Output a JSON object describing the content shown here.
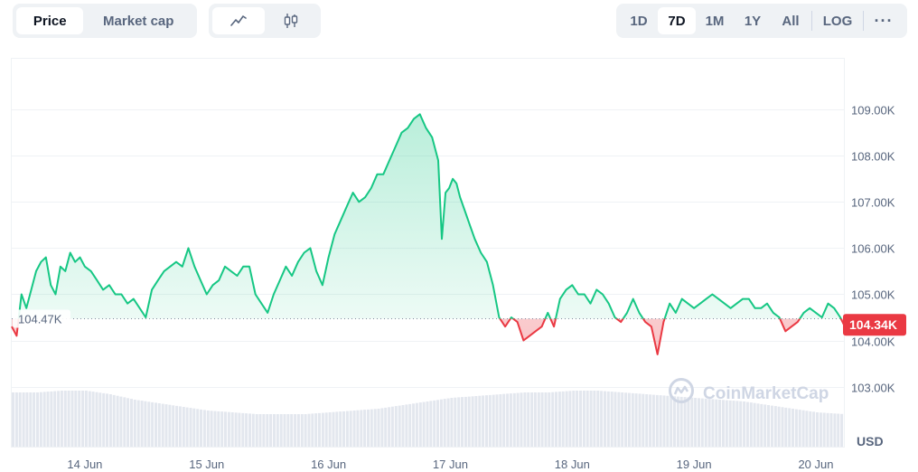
{
  "toolbar": {
    "type_toggle": [
      "Price",
      "Market cap"
    ],
    "type_active": 0,
    "style_icons": [
      "line-chart-icon",
      "candlestick-icon"
    ],
    "style_active": 0,
    "ranges": [
      "1D",
      "7D",
      "1M",
      "1Y",
      "All"
    ],
    "range_active": 1,
    "log_label": "LOG",
    "more_label": "···"
  },
  "colors": {
    "up": "#16c784",
    "down": "#ea3943",
    "up_fill": "#16c784",
    "down_fill": "#ea3943",
    "grid": "#eff2f5",
    "volume": "#e3e7ee",
    "ref_line": "#808a9d",
    "current_badge": "#ea3943",
    "watermark": "#cfd6e4"
  },
  "watermark": {
    "text": "CoinMarketCap",
    "icon": "coinmarketcap-logo-icon"
  },
  "chart_data": {
    "type": "area",
    "title": "",
    "xlabel": "",
    "ylabel": "USD",
    "x_ticks": [
      "14 Jun",
      "15 Jun",
      "16 Jun",
      "17 Jun",
      "18 Jun",
      "19 Jun",
      "20 Jun"
    ],
    "y_ticks": [
      "103.00K",
      "104.00K",
      "105.00K",
      "106.00K",
      "107.00K",
      "108.00K",
      "109.00K"
    ],
    "y_tick_values": [
      103000,
      104000,
      105000,
      106000,
      107000,
      108000,
      109000
    ],
    "ylim": [
      101700,
      110100
    ],
    "x_range_days": [
      13.4,
      20.23
    ],
    "reference_value": 104470,
    "reference_label": "104.47K",
    "current_value": 104340,
    "current_label": "104.34K",
    "series": [
      {
        "x": [
          13.4,
          13.44,
          13.48,
          13.52,
          13.56,
          13.6,
          13.64,
          13.68,
          13.72,
          13.76,
          13.8,
          13.84,
          13.88,
          13.92,
          13.96,
          14.0,
          14.05,
          14.1,
          14.15,
          14.2,
          14.25,
          14.3,
          14.35,
          14.4,
          14.45,
          14.5,
          14.55,
          14.6,
          14.65,
          14.7,
          14.75,
          14.8,
          14.85,
          14.9,
          14.95,
          15.0,
          15.05,
          15.1,
          15.15,
          15.2,
          15.25,
          15.3,
          15.35,
          15.4,
          15.45,
          15.5,
          15.55,
          15.6,
          15.65,
          15.7,
          15.75,
          15.8,
          15.85,
          15.9,
          15.95,
          16.0,
          16.05,
          16.1,
          16.15,
          16.2,
          16.25,
          16.3,
          16.35,
          16.4,
          16.45,
          16.5,
          16.55,
          16.6,
          16.65,
          16.7,
          16.75,
          16.8,
          16.85,
          16.9,
          16.93,
          16.96,
          16.99,
          17.02,
          17.05,
          17.08,
          17.12,
          17.16,
          17.2,
          17.25,
          17.3,
          17.35,
          17.4,
          17.45,
          17.5,
          17.55,
          17.6,
          17.65,
          17.7,
          17.75,
          17.8,
          17.85,
          17.9,
          17.95,
          18.0,
          18.05,
          18.1,
          18.15,
          18.2,
          18.25,
          18.3,
          18.35,
          18.4,
          18.45,
          18.5,
          18.55,
          18.6,
          18.65,
          18.7,
          18.75,
          18.8,
          18.85,
          18.9,
          18.95,
          19.0,
          19.05,
          19.1,
          19.15,
          19.2,
          19.25,
          19.3,
          19.35,
          19.4,
          19.45,
          19.5,
          19.55,
          19.6,
          19.65,
          19.7,
          19.75,
          19.8,
          19.85,
          19.9,
          19.95,
          20.0,
          20.05,
          20.1,
          20.15,
          20.2,
          20.23
        ],
        "y": [
          104300,
          104100,
          105000,
          104700,
          105100,
          105500,
          105700,
          105800,
          105200,
          105000,
          105600,
          105500,
          105900,
          105700,
          105800,
          105600,
          105500,
          105300,
          105100,
          105200,
          105000,
          105000,
          104800,
          104900,
          104700,
          104500,
          105100,
          105300,
          105500,
          105600,
          105700,
          105600,
          106000,
          105600,
          105300,
          105000,
          105200,
          105300,
          105600,
          105500,
          105400,
          105600,
          105600,
          105000,
          104800,
          104600,
          105000,
          105300,
          105600,
          105400,
          105700,
          105900,
          106000,
          105500,
          105200,
          105800,
          106300,
          106600,
          106900,
          107200,
          107000,
          107100,
          107300,
          107600,
          107600,
          107900,
          108200,
          108500,
          108600,
          108800,
          108900,
          108600,
          108400,
          107900,
          106200,
          107200,
          107300,
          107500,
          107400,
          107100,
          106800,
          106500,
          106200,
          105900,
          105700,
          105200,
          104500,
          104300,
          104500,
          104400,
          104000,
          104100,
          104200,
          104300,
          104600,
          104300,
          104900,
          105100,
          105200,
          105000,
          105000,
          104800,
          105100,
          105000,
          104800,
          104500,
          104400,
          104600,
          104900,
          104600,
          104400,
          104300,
          103700,
          104400,
          104800,
          104600,
          104900,
          104800,
          104700,
          104800,
          104900,
          105000,
          104900,
          104800,
          104700,
          104800,
          104900,
          104900,
          104700,
          104700,
          104800,
          104600,
          104500,
          104200,
          104300,
          104400,
          104600,
          104700,
          104600,
          104500,
          104800,
          104700,
          104500,
          104340
        ]
      }
    ],
    "volume": {
      "x": [
        13.4,
        13.6,
        13.8,
        14.0,
        14.2,
        14.4,
        14.6,
        14.8,
        15.0,
        15.2,
        15.4,
        15.6,
        15.8,
        16.0,
        16.2,
        16.4,
        16.6,
        16.8,
        17.0,
        17.2,
        17.4,
        17.6,
        17.8,
        18.0,
        18.2,
        18.4,
        18.6,
        18.8,
        19.0,
        19.2,
        19.4,
        19.6,
        19.8,
        20.0,
        20.23
      ],
      "values": [
        30,
        30,
        31,
        31,
        29,
        26,
        24,
        22,
        20,
        19,
        18,
        18,
        18,
        19,
        20,
        21,
        23,
        25,
        27,
        28,
        29,
        30,
        30,
        31,
        31,
        30,
        29,
        28,
        27,
        26,
        25,
        23,
        21,
        19,
        18
      ],
      "max": 60
    }
  }
}
